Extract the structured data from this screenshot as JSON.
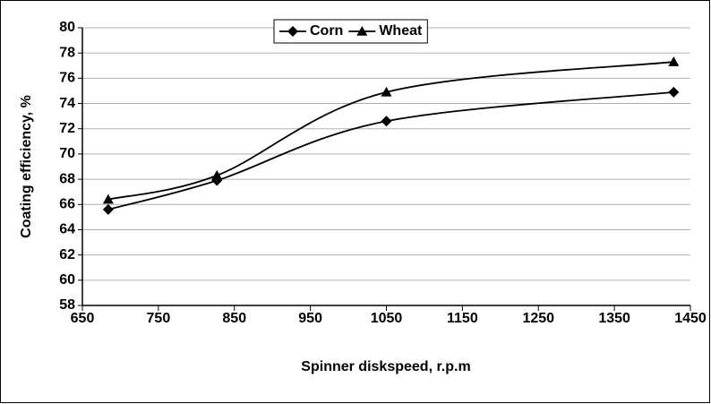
{
  "chart_data": {
    "type": "line",
    "x_label": "Spinner diskspeed, r.p.m",
    "y_label": "Coating efficiency, %",
    "xlim": [
      650,
      1450
    ],
    "xticks": [
      650,
      750,
      850,
      950,
      1050,
      1150,
      1250,
      1350,
      1450
    ],
    "ylim": [
      58,
      80
    ],
    "yticks": [
      58,
      60,
      62,
      64,
      66,
      68,
      70,
      72,
      74,
      76,
      78,
      80
    ],
    "grid": true,
    "smooth": true,
    "legend": "top",
    "series": [
      {
        "name": "Corn",
        "color": "#000000",
        "marker": "diamond",
        "x": [
          684,
          827,
          1050,
          1428
        ],
        "values": [
          65.6,
          67.9,
          72.6,
          74.9
        ]
      },
      {
        "name": "Wheat",
        "color": "#000000",
        "marker": "triangle",
        "x": [
          684,
          827,
          1050,
          1428
        ],
        "values": [
          66.4,
          68.3,
          74.9,
          77.3
        ]
      }
    ]
  }
}
